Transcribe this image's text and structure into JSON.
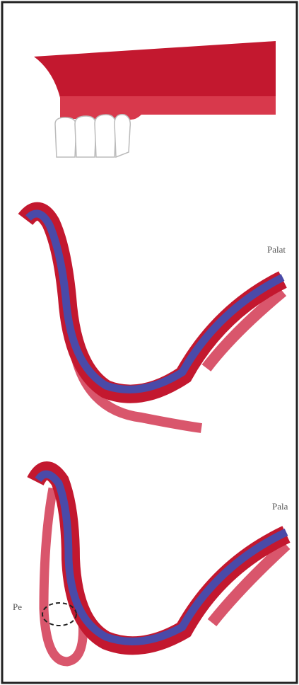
{
  "labels": {
    "middle_right": "Palat",
    "bottom_right": "Pala",
    "bottom_left": "Pe"
  }
}
